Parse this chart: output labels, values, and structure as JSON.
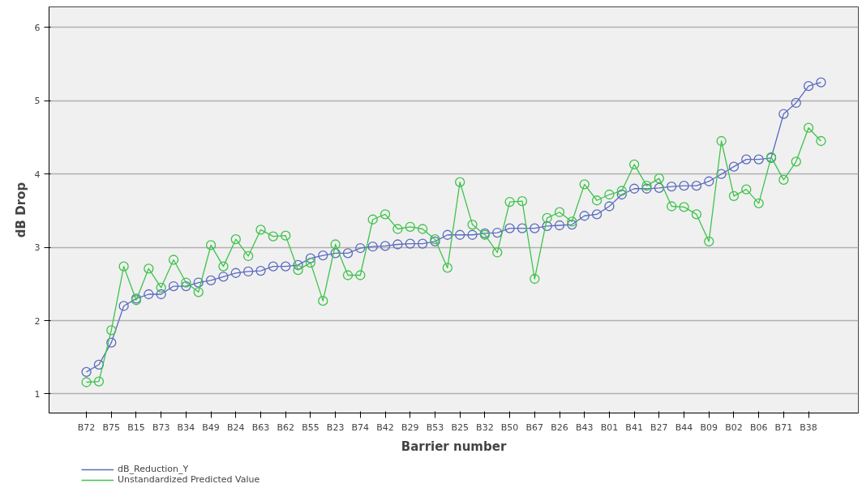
{
  "chart_data": {
    "type": "line",
    "xlabel": "Barrier number",
    "ylabel": "dB Drop",
    "categories": [
      "B72",
      null,
      "B75",
      null,
      "B15",
      null,
      "B73",
      null,
      "B34",
      null,
      "B49",
      null,
      "B24",
      null,
      "B63",
      null,
      "B62",
      null,
      "B55",
      null,
      "B23",
      null,
      "B74",
      null,
      "B42",
      null,
      "B29",
      null,
      "B53",
      null,
      "B25",
      null,
      "B32",
      null,
      "B50",
      null,
      "B67",
      null,
      "B26",
      null,
      "B43",
      null,
      "B01",
      null,
      "B41",
      null,
      "B27",
      null,
      "B44",
      null,
      "B09",
      null,
      "B02",
      null,
      "B06",
      null,
      "B71",
      null,
      "B38",
      null
    ],
    "series": [
      {
        "name": "dB_Reduction_Y",
        "color": "#5a6bbf",
        "values": [
          1.3,
          1.4,
          1.7,
          2.2,
          2.3,
          2.36,
          2.36,
          2.47,
          2.47,
          2.52,
          2.55,
          2.6,
          2.65,
          2.67,
          2.68,
          2.74,
          2.74,
          2.76,
          2.85,
          2.89,
          2.92,
          2.92,
          2.99,
          3.01,
          3.02,
          3.04,
          3.05,
          3.05,
          3.08,
          3.17,
          3.17,
          3.17,
          3.19,
          3.2,
          3.26,
          3.26,
          3.26,
          3.29,
          3.3,
          3.31,
          3.43,
          3.45,
          3.56,
          3.72,
          3.8,
          3.8,
          3.81,
          3.83,
          3.84,
          3.84,
          3.9,
          4.0,
          4.1,
          4.2,
          4.2,
          4.22,
          4.82,
          4.97,
          5.2,
          5.25
        ]
      },
      {
        "name": "Unstandardized Predicted Value",
        "color": "#3ec34a",
        "values": [
          1.16,
          1.17,
          1.87,
          2.74,
          2.28,
          2.71,
          2.45,
          2.83,
          2.52,
          2.39,
          3.03,
          2.74,
          3.11,
          2.88,
          3.24,
          3.15,
          3.16,
          2.69,
          2.79,
          2.27,
          3.04,
          2.62,
          2.62,
          3.38,
          3.45,
          3.25,
          3.28,
          3.25,
          3.11,
          2.72,
          3.89,
          3.31,
          3.17,
          2.93,
          3.62,
          3.63,
          2.57,
          3.4,
          3.48,
          3.35,
          3.86,
          3.64,
          3.72,
          3.77,
          4.13,
          3.84,
          3.94,
          3.56,
          3.55,
          3.45,
          3.08,
          4.45,
          3.7,
          3.79,
          3.6,
          4.23,
          3.92,
          4.17,
          4.63,
          4.45
        ]
      }
    ],
    "ylim": [
      0.74,
      6.28
    ],
    "yticks": [
      1,
      2,
      3,
      4,
      5,
      6
    ],
    "grid": "y",
    "legend": "bottom left",
    "marker": "circle",
    "line_style": "solid"
  }
}
